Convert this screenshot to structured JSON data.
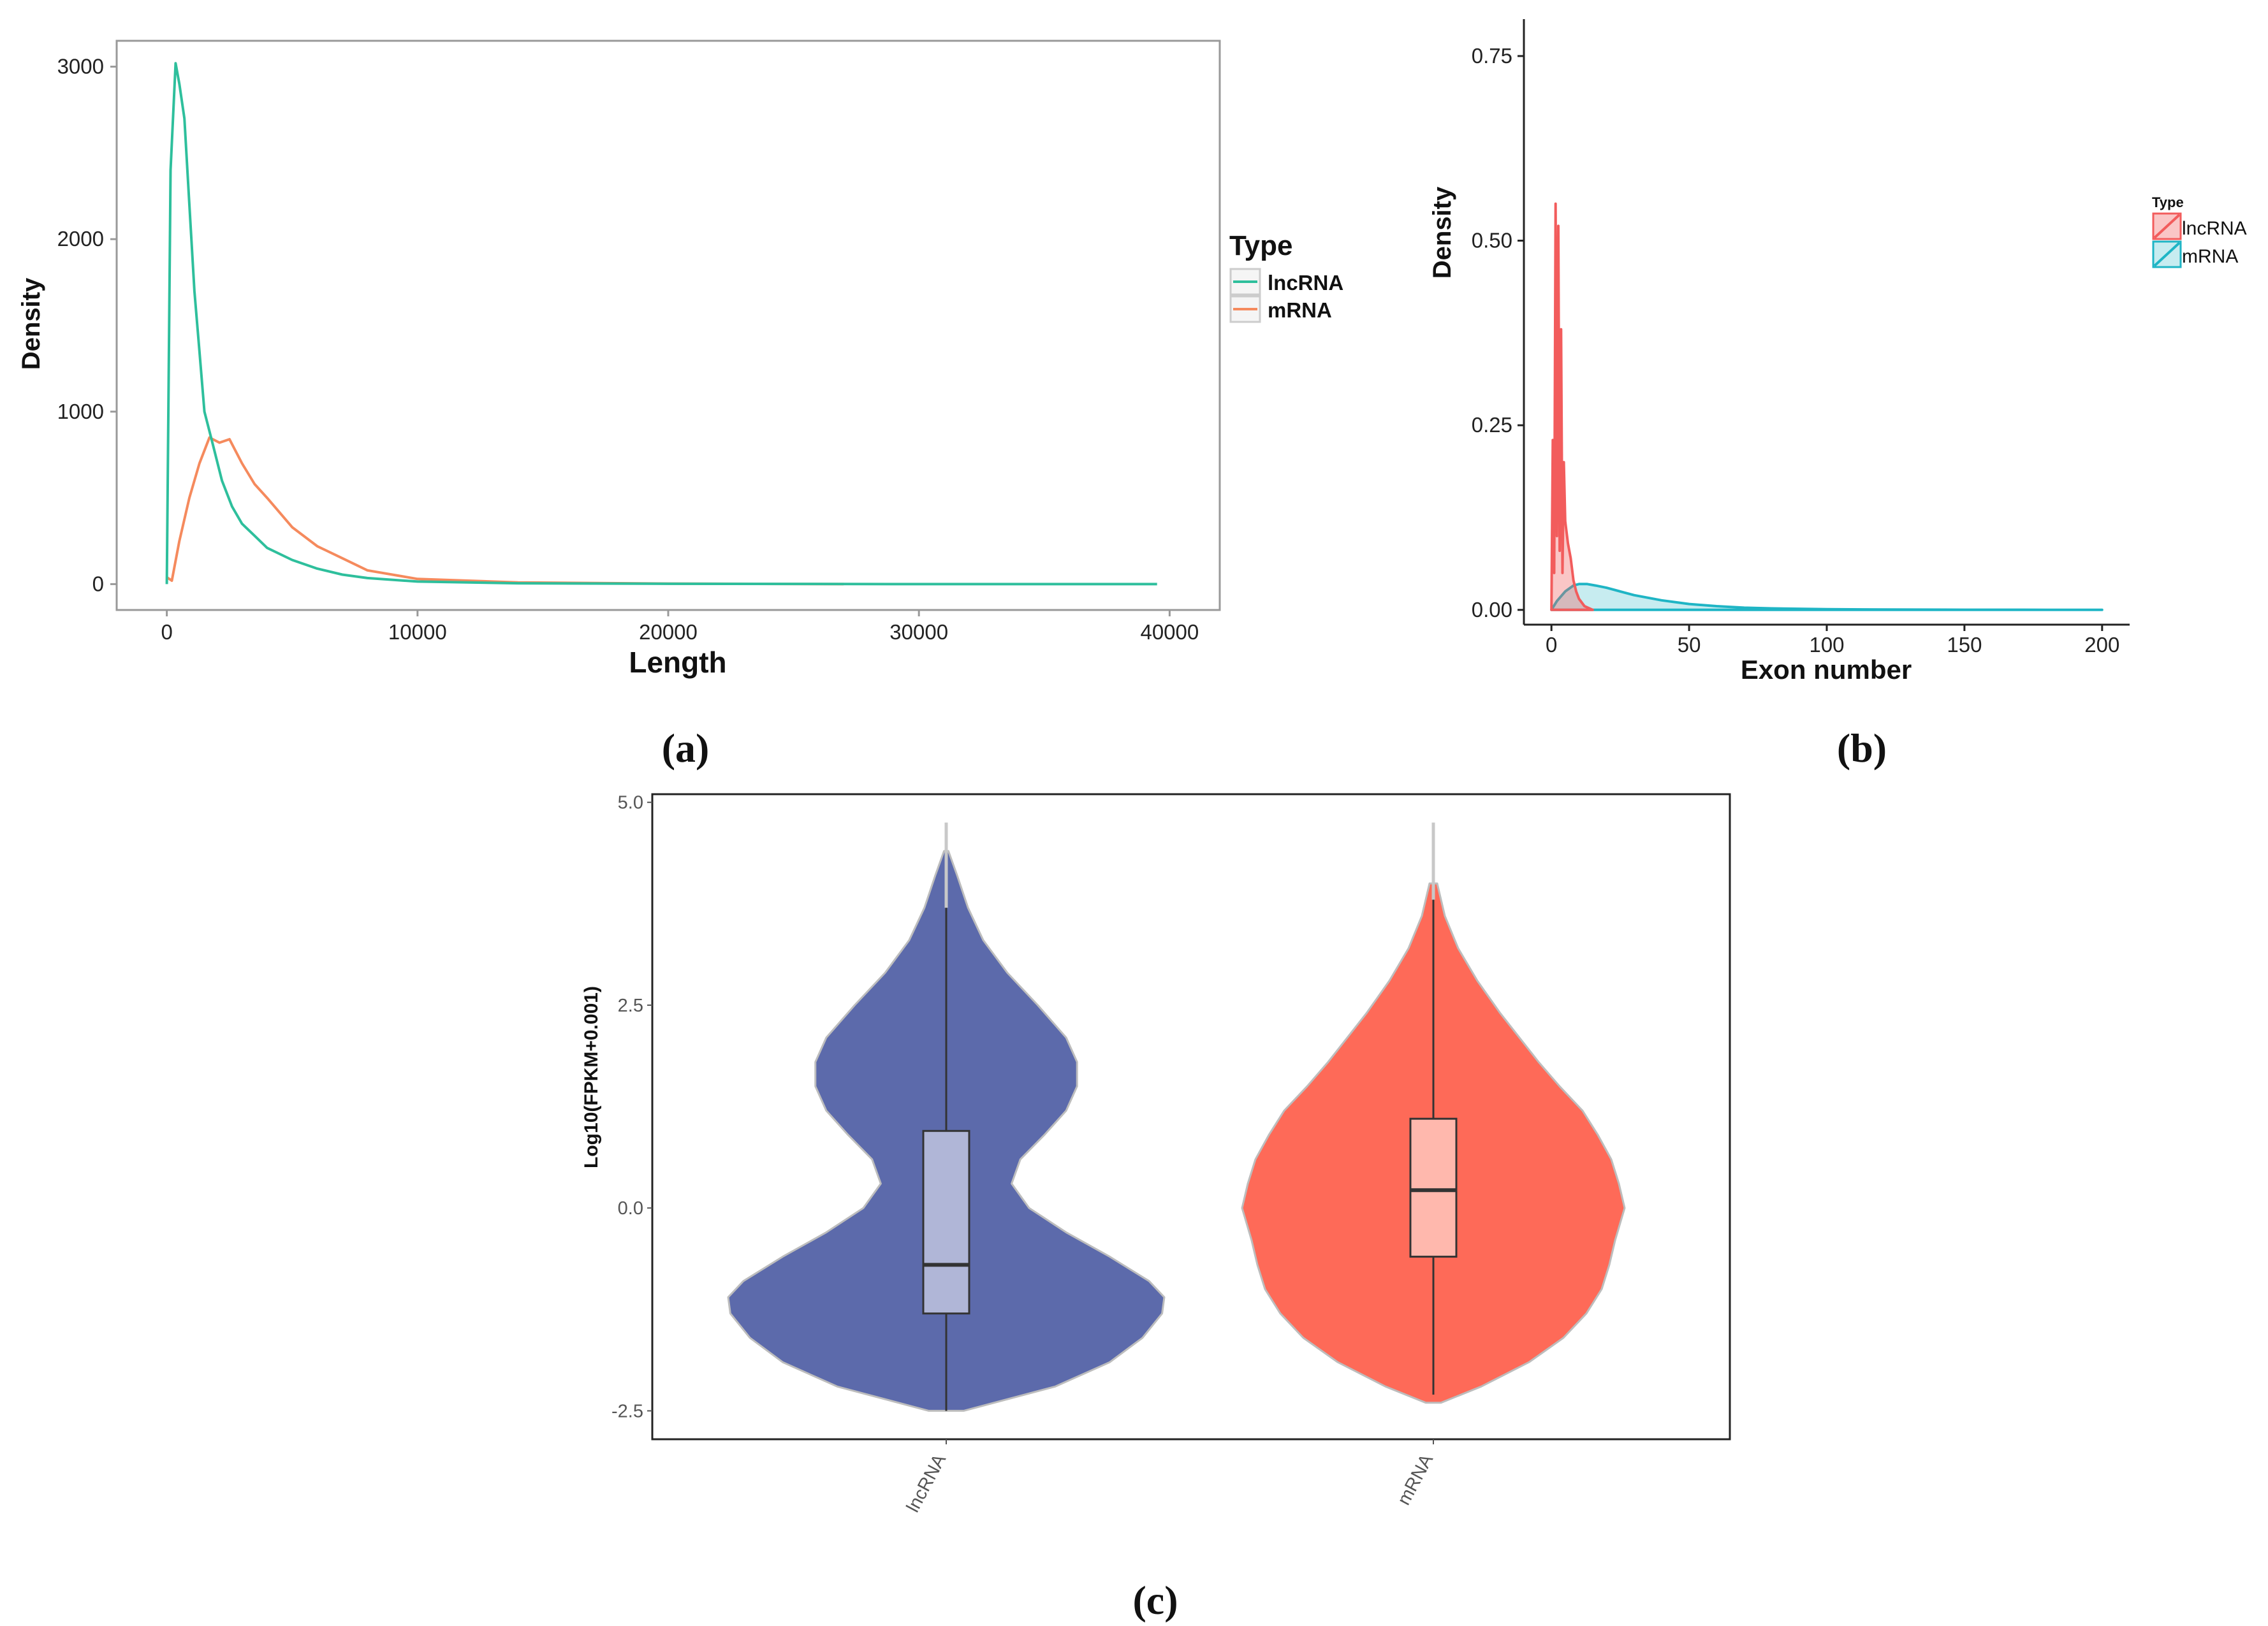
{
  "colors": {
    "lncRNA_a": "#2ebf9c",
    "mRNA_a": "#f58a5d",
    "lncRNA_b": "#f25c5c",
    "mRNA_b": "#1fb5c5",
    "lncRNA_c": "#5c6aab",
    "mRNA_c": "#fe6a58"
  },
  "chart_data": [
    {
      "id": "a",
      "type": "line",
      "caption": "(a)",
      "xlabel": "Length",
      "ylabel": "Density",
      "xlim": [
        -2000,
        42000
      ],
      "ylim": [
        -150,
        3150
      ],
      "xticks": [
        0,
        10000,
        20000,
        30000,
        40000
      ],
      "yticks": [
        0,
        1000,
        2000,
        3000
      ],
      "legend": {
        "title": "Type",
        "placement": "right",
        "labels": [
          "lncRNA",
          "mRNA"
        ]
      },
      "series": [
        {
          "name": "lncRNA",
          "x": [
            0,
            150,
            350,
            500,
            700,
            900,
            1100,
            1300,
            1500,
            1800,
            2200,
            2600,
            3000,
            3500,
            4000,
            5000,
            6000,
            7000,
            8000,
            10000,
            14000,
            20000,
            30000,
            39500
          ],
          "y": [
            0,
            2400,
            3020,
            2900,
            2700,
            2200,
            1700,
            1350,
            1000,
            830,
            600,
            450,
            350,
            280,
            210,
            140,
            90,
            55,
            35,
            15,
            5,
            2,
            0,
            0
          ]
        },
        {
          "name": "mRNA",
          "x": [
            0,
            200,
            500,
            900,
            1300,
            1700,
            2100,
            2500,
            3000,
            3500,
            4000,
            5000,
            6000,
            7000,
            8000,
            10000,
            14000,
            20000,
            27000
          ],
          "y": [
            40,
            20,
            250,
            500,
            700,
            850,
            820,
            840,
            700,
            580,
            500,
            330,
            220,
            150,
            80,
            30,
            10,
            3,
            0
          ]
        }
      ]
    },
    {
      "id": "b",
      "type": "area",
      "caption": "(b)",
      "xlabel": "Exon number",
      "ylabel": "Density",
      "xlim": [
        -10,
        210
      ],
      "ylim": [
        -0.02,
        0.8
      ],
      "xticks": [
        0,
        50,
        100,
        150,
        200
      ],
      "yticks": [
        "0.00",
        "0.25",
        "0.50",
        "0.75"
      ],
      "legend": {
        "title": "Type",
        "placement": "right",
        "labels": [
          "lncRNA",
          "mRNA"
        ]
      },
      "series": [
        {
          "name": "lncRNA",
          "x": [
            0,
            0.5,
            1,
            1.5,
            2,
            2.5,
            3,
            3.5,
            4,
            4.5,
            5,
            6,
            7,
            8,
            9,
            10,
            12,
            15
          ],
          "y": [
            0,
            0.23,
            0.05,
            0.55,
            0.1,
            0.52,
            0.08,
            0.38,
            0.05,
            0.2,
            0.12,
            0.09,
            0.07,
            0.04,
            0.025,
            0.015,
            0.005,
            0
          ]
        },
        {
          "name": "mRNA",
          "x": [
            0,
            2,
            5,
            8,
            10,
            13,
            16,
            20,
            25,
            30,
            40,
            50,
            60,
            70,
            80,
            100,
            120,
            150,
            180,
            200
          ],
          "y": [
            0,
            0.012,
            0.025,
            0.033,
            0.035,
            0.035,
            0.033,
            0.03,
            0.025,
            0.02,
            0.013,
            0.008,
            0.005,
            0.003,
            0.002,
            0.001,
            0.0005,
            0.0002,
            0.0001,
            0
          ]
        }
      ]
    },
    {
      "id": "c",
      "type": "violin",
      "caption": "(c)",
      "xlabel": "",
      "ylabel": "Log10(FPKM+0.001)",
      "ylim": [
        -2.85,
        5.1
      ],
      "yticks": [
        "-2.5",
        "0.0",
        "2.5",
        "5.0"
      ],
      "categories": [
        "lncRNA",
        "mRNA"
      ],
      "series": [
        {
          "name": "lncRNA",
          "box": {
            "whisker_low": -2.5,
            "q1": -1.3,
            "median": -0.7,
            "q3": 0.95,
            "whisker_high": 3.7
          },
          "max_point": 4.75,
          "density": {
            "y": [
              -2.5,
              -2.2,
              -1.9,
              -1.6,
              -1.3,
              -1.1,
              -0.9,
              -0.6,
              -0.3,
              0,
              0.3,
              0.6,
              0.9,
              1.2,
              1.5,
              1.8,
              2.1,
              2.5,
              2.9,
              3.3,
              3.7,
              4.1,
              4.4
            ],
            "w": [
              0.08,
              0.5,
              0.75,
              0.9,
              0.99,
              1.0,
              0.93,
              0.75,
              0.55,
              0.38,
              0.3,
              0.34,
              0.45,
              0.55,
              0.6,
              0.6,
              0.55,
              0.42,
              0.28,
              0.17,
              0.1,
              0.05,
              0.01
            ]
          }
        },
        {
          "name": "mRNA",
          "box": {
            "whisker_low": -2.3,
            "q1": -0.6,
            "median": 0.22,
            "q3": 1.1,
            "whisker_high": 3.8
          },
          "max_point": 4.75,
          "density": {
            "y": [
              -2.4,
              -2.2,
              -1.9,
              -1.6,
              -1.3,
              -1.0,
              -0.7,
              -0.4,
              0,
              0.3,
              0.6,
              0.9,
              1.2,
              1.5,
              1.8,
              2.1,
              2.4,
              2.8,
              3.2,
              3.6,
              4.0
            ],
            "w": [
              0.04,
              0.25,
              0.5,
              0.68,
              0.8,
              0.88,
              0.92,
              0.95,
              1.0,
              0.97,
              0.93,
              0.86,
              0.78,
              0.66,
              0.55,
              0.45,
              0.35,
              0.23,
              0.13,
              0.06,
              0.02
            ]
          }
        }
      ]
    }
  ]
}
